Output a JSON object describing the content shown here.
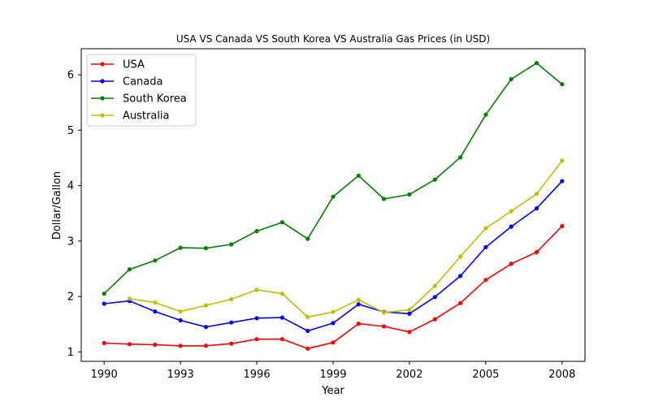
{
  "chart_data": {
    "type": "line",
    "title": "USA VS Canada VS South Korea VS Australia Gas Prices (in USD)",
    "xlabel": "Year",
    "ylabel": "Dollar/Gallon",
    "x": [
      1990,
      1991,
      1992,
      1993,
      1994,
      1995,
      1996,
      1997,
      1998,
      1999,
      2000,
      2001,
      2002,
      2003,
      2004,
      2005,
      2006,
      2007,
      2008
    ],
    "xticks": [
      1990,
      1993,
      1996,
      1999,
      2002,
      2005,
      2008
    ],
    "yticks": [
      1,
      2,
      3,
      4,
      5,
      6
    ],
    "xlim": [
      1989.1,
      2008.9
    ],
    "ylim": [
      0.83,
      6.47
    ],
    "grid": false,
    "legend_position": "top-left",
    "series": [
      {
        "name": "USA",
        "color": "#ff0000",
        "values": [
          1.16,
          1.14,
          1.13,
          1.11,
          1.11,
          1.15,
          1.23,
          1.23,
          1.06,
          1.17,
          1.51,
          1.46,
          1.36,
          1.59,
          1.88,
          2.3,
          2.59,
          2.8,
          3.27
        ]
      },
      {
        "name": "Canada",
        "color": "#0000ff",
        "values": [
          1.87,
          1.92,
          1.73,
          1.57,
          1.45,
          1.53,
          1.61,
          1.62,
          1.38,
          1.52,
          1.86,
          1.72,
          1.69,
          1.99,
          2.37,
          2.89,
          3.26,
          3.59,
          4.08
        ]
      },
      {
        "name": "South Korea",
        "color": "#008000",
        "values": [
          2.05,
          2.49,
          2.65,
          2.88,
          2.87,
          2.94,
          3.18,
          3.34,
          3.04,
          3.8,
          4.18,
          3.76,
          3.84,
          4.11,
          4.51,
          5.28,
          5.92,
          6.21,
          5.83
        ]
      },
      {
        "name": "Australia",
        "color": "#bfbf00",
        "values": [
          null,
          1.96,
          1.89,
          1.73,
          1.84,
          1.95,
          2.12,
          2.05,
          1.63,
          1.72,
          1.94,
          1.71,
          1.76,
          2.19,
          2.72,
          3.23,
          3.54,
          3.85,
          4.45
        ]
      }
    ]
  }
}
